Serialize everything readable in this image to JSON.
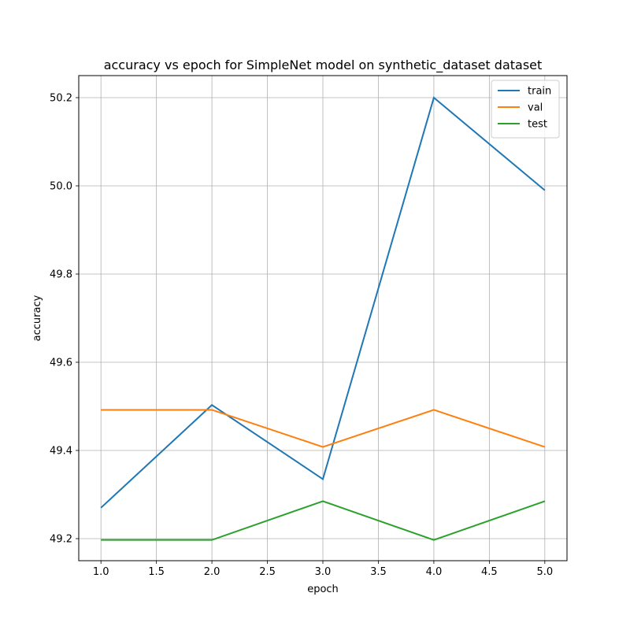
{
  "chart_data": {
    "type": "line",
    "title": "accuracy vs epoch for SimpleNet model on synthetic_dataset dataset",
    "xlabel": "epoch",
    "ylabel": "accuracy",
    "x": [
      1,
      2,
      3,
      4,
      5
    ],
    "xlim": [
      0.8,
      5.2
    ],
    "ylim": [
      49.15,
      50.25
    ],
    "xticks": [
      1.0,
      1.5,
      2.0,
      2.5,
      3.0,
      3.5,
      4.0,
      4.5,
      5.0
    ],
    "xtick_labels": [
      "1.0",
      "1.5",
      "2.0",
      "2.5",
      "3.0",
      "3.5",
      "4.0",
      "4.5",
      "5.0"
    ],
    "yticks": [
      49.2,
      49.4,
      49.6,
      49.8,
      50.0,
      50.2
    ],
    "ytick_labels": [
      "49.2",
      "49.4",
      "49.6",
      "49.8",
      "50.0",
      "50.2"
    ],
    "grid": true,
    "legend_position": "top-right",
    "series": [
      {
        "name": "train",
        "color": "#1f77b4",
        "values": [
          49.27,
          49.503,
          49.335,
          50.2,
          49.99
        ]
      },
      {
        "name": "val",
        "color": "#ff7f0e",
        "values": [
          49.492,
          49.492,
          49.408,
          49.492,
          49.408
        ]
      },
      {
        "name": "test",
        "color": "#2ca02c",
        "values": [
          49.197,
          49.197,
          49.285,
          49.197,
          49.285
        ]
      }
    ]
  }
}
